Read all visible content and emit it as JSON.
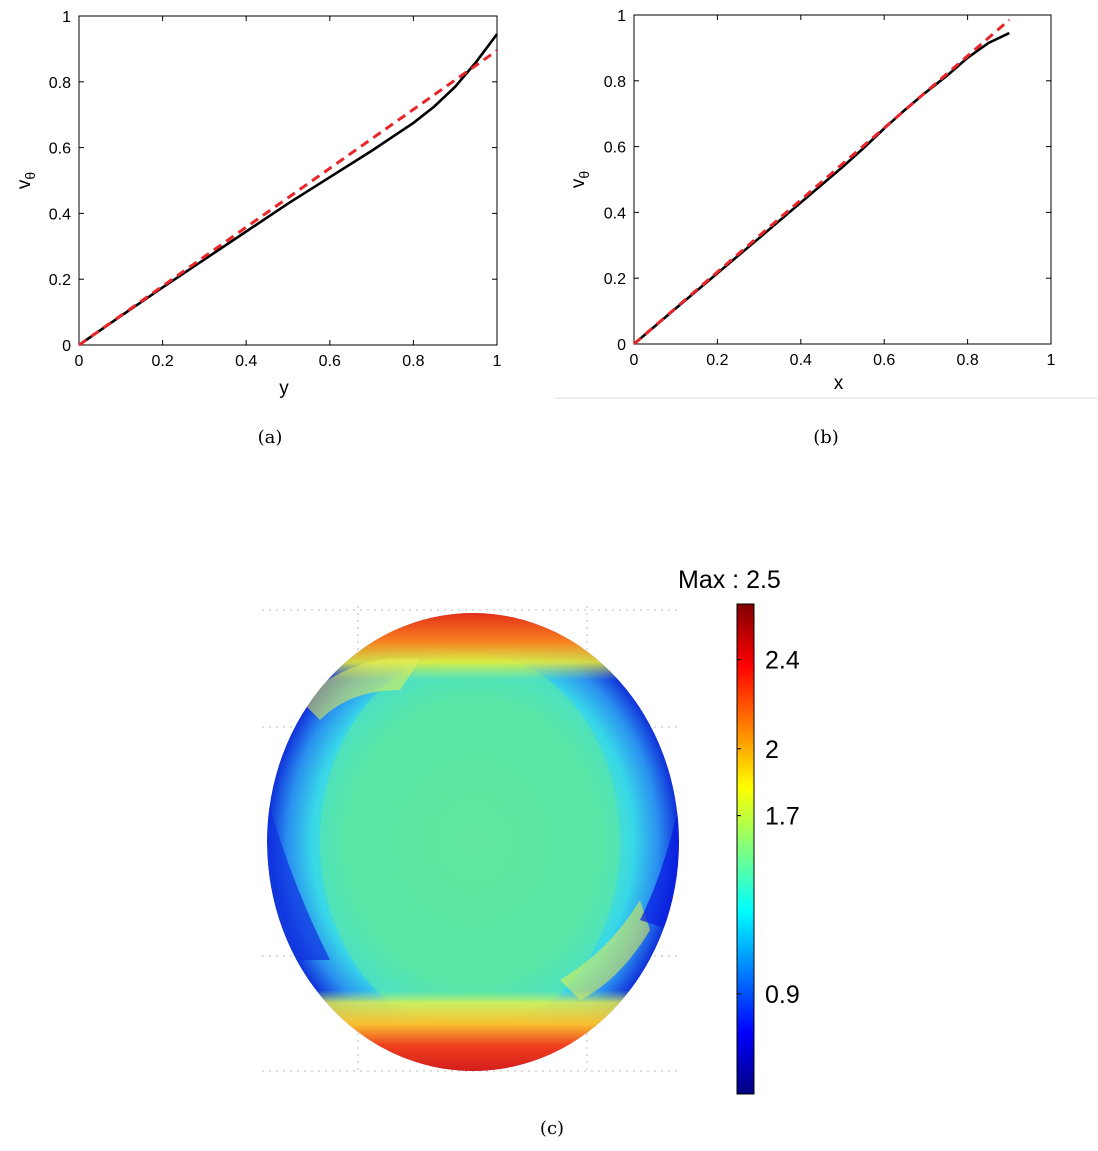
{
  "chart_data": [
    {
      "type": "line",
      "panel": "a",
      "caption": "(a)",
      "xlabel": "y",
      "ylabel_main": "v",
      "ylabel_sub": "θ",
      "xlim": [
        0,
        1
      ],
      "ylim": [
        0,
        1
      ],
      "xticks": [
        "0",
        "0.2",
        "0.4",
        "0.6",
        "0.8",
        "1"
      ],
      "yticks": [
        "0",
        "0.2",
        "0.4",
        "0.6",
        "0.8",
        "1"
      ],
      "series": [
        {
          "style": "solid",
          "color": "#000000",
          "x": [
            0,
            0.1,
            0.2,
            0.3,
            0.4,
            0.5,
            0.6,
            0.7,
            0.8,
            0.85,
            0.9,
            0.95,
            1.0
          ],
          "y": [
            0,
            0.088,
            0.175,
            0.26,
            0.345,
            0.43,
            0.51,
            0.59,
            0.675,
            0.725,
            0.785,
            0.86,
            0.945
          ]
        },
        {
          "style": "dashed",
          "color": "#e8262a",
          "x": [
            0,
            1.0
          ],
          "y": [
            0,
            0.895
          ]
        }
      ]
    },
    {
      "type": "line",
      "panel": "b",
      "caption": "(b)",
      "xlabel": "x",
      "ylabel_main": "v",
      "ylabel_sub": "θ",
      "xlim": [
        0,
        1
      ],
      "ylim": [
        0,
        1
      ],
      "xticks": [
        "0",
        "0.2",
        "0.4",
        "0.6",
        "0.8",
        "1"
      ],
      "yticks": [
        "0",
        "0.2",
        "0.4",
        "0.6",
        "0.8",
        "1"
      ],
      "series": [
        {
          "style": "solid",
          "color": "#000000",
          "x": [
            0,
            0.1,
            0.2,
            0.3,
            0.4,
            0.5,
            0.55,
            0.6,
            0.65,
            0.7,
            0.75,
            0.8,
            0.85,
            0.9
          ],
          "y": [
            0,
            0.108,
            0.215,
            0.322,
            0.43,
            0.538,
            0.595,
            0.655,
            0.712,
            0.765,
            0.815,
            0.87,
            0.915,
            0.945
          ]
        },
        {
          "style": "dashed",
          "color": "#e8262a",
          "x": [
            0,
            0.9
          ],
          "y": [
            0,
            0.985
          ]
        }
      ]
    },
    {
      "type": "heatmap",
      "panel": "c",
      "caption": "(c)",
      "colorbar_title": "Max : 2.5",
      "colorbar_ticks": [
        {
          "label": "2.4",
          "value": 2.4
        },
        {
          "label": "2",
          "value": 2.0
        },
        {
          "label": "1.7",
          "value": 1.7
        },
        {
          "label": "0.9",
          "value": 0.9
        }
      ],
      "colormap": "jet",
      "colorbar_stops": [
        "#00007f",
        "#0000ff",
        "#007fff",
        "#00ffff",
        "#7fff7f",
        "#ffff00",
        "#ff7f00",
        "#ff0000",
        "#7f0000"
      ],
      "regions": {
        "interior": "#5ee8a0",
        "rim_top_bottom": "#f03020",
        "rim_sides": "#1040e0",
        "transition": "#d8f040"
      }
    }
  ]
}
